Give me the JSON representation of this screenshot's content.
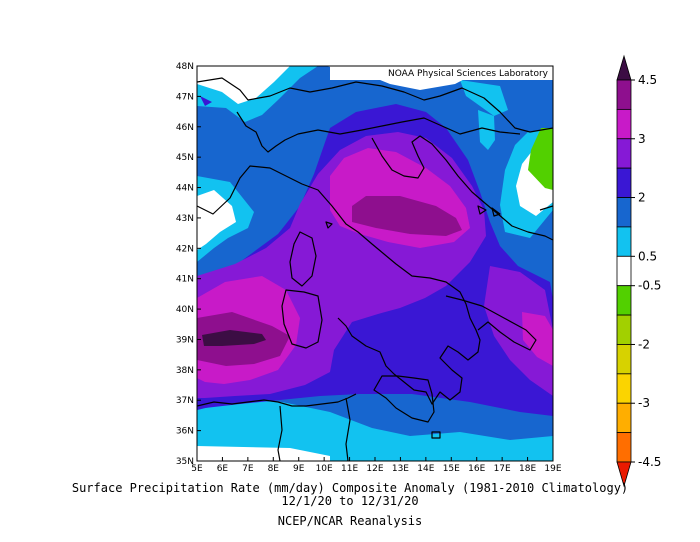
{
  "chart_data": {
    "type": "heatmap",
    "title": "Surface Precipitation Rate (mm/day) Composite Anomaly (1981-2010 Climatology)",
    "subtitle": "12/1/20  to 12/31/20",
    "source": "NCEP/NCAR Reanalysis",
    "watermark": "NOAA Physical Sciences Laboratory",
    "x_ticks": [
      "5E",
      "6E",
      "7E",
      "8E",
      "9E",
      "10E",
      "11E",
      "12E",
      "13E",
      "14E",
      "15E",
      "16E",
      "17E",
      "18E",
      "19E"
    ],
    "y_ticks": [
      "48N",
      "47N",
      "46N",
      "45N",
      "44N",
      "43N",
      "42N",
      "41N",
      "40N",
      "39N",
      "38N",
      "37N",
      "36N",
      "35N"
    ],
    "lon_range": [
      5,
      19
    ],
    "lat_range": [
      35,
      48
    ],
    "units": "mm/day",
    "colorbar": {
      "labels": [
        "4.5",
        "3",
        "2",
        "0.5",
        "-0.5",
        "-2",
        "-3",
        "-4.5"
      ],
      "levels": [
        {
          "range": "> 4.5",
          "color": "#3c0d44"
        },
        {
          "range": "3.75 to 4.5",
          "color": "#8e0f8e"
        },
        {
          "range": "3 to 3.75",
          "color": "#c81ac8"
        },
        {
          "range": "2.5 to 3",
          "color": "#8619d6"
        },
        {
          "range": "2 to 2.5",
          "color": "#3a17d4"
        },
        {
          "range": "1 to 2",
          "color": "#1766cf"
        },
        {
          "range": "0.5 to 1",
          "color": "#12c2f0"
        },
        {
          "range": "-0.5 to 0.5",
          "color": "#ffffff"
        },
        {
          "range": "-1 to -0.5",
          "color": "#52d000"
        },
        {
          "range": "-2 to -1",
          "color": "#a2d000"
        },
        {
          "range": "-2.5 to -2",
          "color": "#d7d200"
        },
        {
          "range": "-3 to -2.5",
          "color": "#fbd400"
        },
        {
          "range": "-3.75 to -3",
          "color": "#ffae00"
        },
        {
          "range": "-4.5 to -3.75",
          "color": "#ff6e00"
        },
        {
          "range": "< -4.5",
          "color": "#ea1a00"
        }
      ]
    }
  }
}
